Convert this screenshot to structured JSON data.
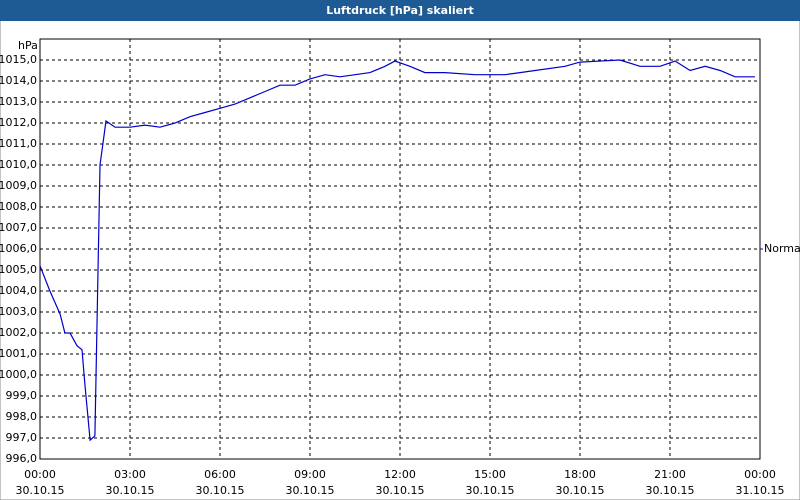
{
  "chart_data": {
    "type": "line",
    "title": "Luftdruck [hPa] skaliert",
    "y_label": "hPa",
    "x": [
      0,
      0.33,
      0.67,
      0.83,
      1.0,
      1.23,
      1.4,
      1.5,
      1.67,
      1.83,
      2.0,
      2.2,
      2.5,
      3.0,
      3.5,
      4.0,
      4.5,
      5.0,
      5.5,
      6.0,
      6.5,
      7.0,
      7.5,
      8.0,
      8.5,
      9.0,
      9.5,
      10.0,
      10.5,
      11.0,
      11.5,
      11.83,
      12.33,
      12.83,
      13.5,
      14.5,
      15.5,
      16.0,
      16.5,
      17.5,
      18.0,
      18.67,
      19.33,
      20.0,
      20.67,
      21.17,
      21.67,
      22.17,
      22.67,
      23.17,
      23.83
    ],
    "series": [
      {
        "name": "Normal",
        "color": "#0000cc",
        "values": [
          1005.2,
          1004.0,
          1002.9,
          1002.0,
          1002.0,
          1001.4,
          1001.2,
          999.5,
          996.9,
          997.1,
          1010.0,
          1012.1,
          1011.8,
          1011.8,
          1011.9,
          1011.8,
          1012.0,
          1012.3,
          1012.5,
          1012.7,
          1012.9,
          1013.2,
          1013.5,
          1013.8,
          1013.8,
          1014.1,
          1014.3,
          1014.2,
          1014.3,
          1014.4,
          1014.7,
          1014.95,
          1014.7,
          1014.4,
          1014.4,
          1014.3,
          1014.3,
          1014.4,
          1014.5,
          1014.7,
          1014.9,
          1014.95,
          1015.0,
          1014.7,
          1014.7,
          1014.95,
          1014.5,
          1014.7,
          1014.5,
          1014.2,
          1014.2
        ]
      }
    ],
    "xlim": [
      0,
      24
    ],
    "xticks": [
      {
        "value": 0,
        "label": "00:00"
      },
      {
        "value": 3,
        "label": "03:00"
      },
      {
        "value": 6,
        "label": "06:00"
      },
      {
        "value": 9,
        "label": "09:00"
      },
      {
        "value": 12,
        "label": "12:00"
      },
      {
        "value": 15,
        "label": "15:00"
      },
      {
        "value": 18,
        "label": "18:00"
      },
      {
        "value": 21,
        "label": "21:00"
      },
      {
        "value": 24,
        "label": "00:00"
      }
    ],
    "xtick_dates": [
      "30.10.15",
      "30.10.15",
      "30.10.15",
      "30.10.15",
      "30.10.15",
      "30.10.15",
      "30.10.15",
      "30.10.15",
      "31.10.15"
    ],
    "ylim": [
      996,
      1016
    ],
    "yticks": [
      {
        "value": 996,
        "label": "996,0"
      },
      {
        "value": 997,
        "label": "997,0"
      },
      {
        "value": 998,
        "label": "998,0"
      },
      {
        "value": 999,
        "label": "999,0"
      },
      {
        "value": 1000,
        "label": "1000,0"
      },
      {
        "value": 1001,
        "label": "1001,0"
      },
      {
        "value": 1002,
        "label": "1002,0"
      },
      {
        "value": 1003,
        "label": "1003,0"
      },
      {
        "value": 1004,
        "label": "1004,0"
      },
      {
        "value": 1005,
        "label": "1005,0"
      },
      {
        "value": 1006,
        "label": "1006,0"
      },
      {
        "value": 1007,
        "label": "1007,0"
      },
      {
        "value": 1008,
        "label": "1008,0"
      },
      {
        "value": 1009,
        "label": "1009,0"
      },
      {
        "value": 1010,
        "label": "1010,0"
      },
      {
        "value": 1011,
        "label": "1011,0"
      },
      {
        "value": 1012,
        "label": "1012,0"
      },
      {
        "value": 1013,
        "label": "1013,0"
      },
      {
        "value": 1014,
        "label": "1014,0"
      },
      {
        "value": 1015,
        "label": "1015,0"
      }
    ],
    "grid": true
  }
}
